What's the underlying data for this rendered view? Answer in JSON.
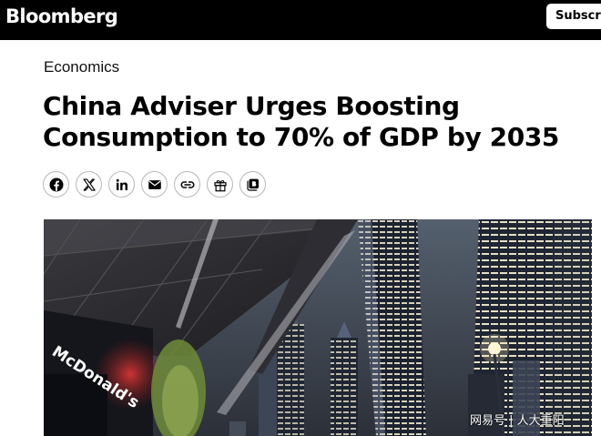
{
  "header": {
    "logo": "Bloomberg",
    "subscribe_label": "Subscri"
  },
  "article": {
    "category": "Economics",
    "headline": "China Adviser Urges Boosting Consumption to 70% of GDP by 2035"
  },
  "share_icons": [
    "facebook-icon",
    "x-icon",
    "linkedin-icon",
    "email-icon",
    "link-icon",
    "gift-icon",
    "bloomberg-terminal-icon"
  ],
  "hero": {
    "storefront_sign": "McDonald's",
    "watermark": "网易号 | 人大重阳"
  }
}
